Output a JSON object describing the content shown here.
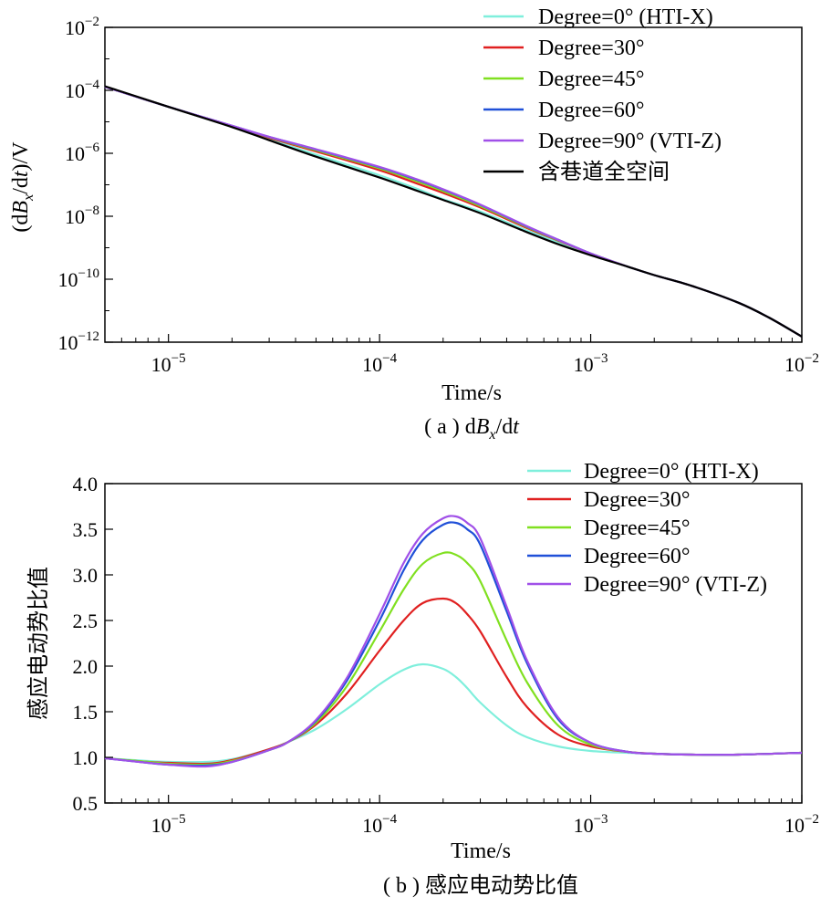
{
  "colors": {
    "deg0": "#7fefdc",
    "deg30": "#e02020",
    "deg45": "#80e020",
    "deg60": "#2050d8",
    "deg90": "#a050e8",
    "fullspace": "#000000"
  },
  "chart_data": [
    {
      "type": "line",
      "caption": "( a ) dBx/dt",
      "xlabel": "Time/s",
      "ylabel": "(dBx/dt)/V",
      "xscale": "log",
      "yscale": "log",
      "xlim": [
        5e-06,
        0.01
      ],
      "ylim": [
        1e-12,
        0.01
      ],
      "xticks": [
        {
          "base": "10",
          "exp": "−5",
          "value": 1e-05
        },
        {
          "base": "10",
          "exp": "−4",
          "value": 0.0001
        },
        {
          "base": "10",
          "exp": "−3",
          "value": 0.001
        },
        {
          "base": "10",
          "exp": "−2",
          "value": 0.01
        }
      ],
      "yticks": [
        {
          "base": "10",
          "exp": "−2",
          "value": 0.01
        },
        {
          "base": "10",
          "exp": "−4",
          "value": 0.0001
        },
        {
          "base": "10",
          "exp": "−6",
          "value": 1e-06
        },
        {
          "base": "10",
          "exp": "−8",
          "value": 1e-08
        },
        {
          "base": "10",
          "exp": "−10",
          "value": 1e-10
        },
        {
          "base": "10",
          "exp": "−12",
          "value": 1e-12
        }
      ],
      "legend_position": "top-right",
      "x": [
        5e-06,
        1e-05,
        2e-05,
        3e-05,
        5e-05,
        0.0001,
        0.00015,
        0.0002,
        0.0003,
        0.0005,
        0.0007,
        0.001,
        0.0015,
        0.002,
        0.003,
        0.005,
        0.007,
        0.01
      ],
      "series": [
        {
          "name": "Degree=0° (HTI-X)",
          "color_key": "deg0",
          "values": [
            0.00013,
            3e-05,
            7e-06,
            2.8e-06,
            9e-07,
            2e-07,
            7.5e-08,
            3.5e-08,
            1.4e-08,
            3.5e-09,
            1.5e-09,
            6.2e-10,
            2.5e-10,
            1.35e-10,
            6.2e-11,
            1.8e-11,
            6e-12,
            1.5e-12
          ]
        },
        {
          "name": "Degree=30°",
          "color_key": "deg30",
          "values": [
            0.00013,
            3e-05,
            7.3e-06,
            3.1e-06,
            1.15e-06,
            2.9e-07,
            1.1e-07,
            5.5e-08,
            1.9e-08,
            4.2e-09,
            1.7e-09,
            6.5e-10,
            2.5e-10,
            1.35e-10,
            6.2e-11,
            1.8e-11,
            6e-12,
            1.5e-12
          ]
        },
        {
          "name": "Degree=45°",
          "color_key": "deg45",
          "values": [
            0.00013,
            3e-05,
            7.4e-06,
            3.25e-06,
            1.25e-06,
            3.3e-07,
            1.3e-07,
            6.3e-08,
            2.1e-08,
            4.5e-09,
            1.75e-09,
            6.6e-10,
            2.5e-10,
            1.35e-10,
            6.2e-11,
            1.8e-11,
            6e-12,
            1.5e-12
          ]
        },
        {
          "name": "Degree=60°",
          "color_key": "deg60",
          "values": [
            0.00013,
            3e-05,
            7.5e-06,
            3.3e-06,
            1.32e-06,
            3.6e-07,
            1.45e-07,
            7e-08,
            2.3e-08,
            4.7e-09,
            1.8e-09,
            6.6e-10,
            2.5e-10,
            1.35e-10,
            6.2e-11,
            1.8e-11,
            6e-12,
            1.5e-12
          ]
        },
        {
          "name": "Degree=90° (VTI-Z)",
          "color_key": "deg90",
          "values": [
            0.00013,
            3e-05,
            7.5e-06,
            3.35e-06,
            1.35e-06,
            3.7e-07,
            1.5e-07,
            7.2e-08,
            2.35e-08,
            4.8e-09,
            1.8e-09,
            6.6e-10,
            2.5e-10,
            1.35e-10,
            6.2e-11,
            1.8e-11,
            6e-12,
            1.5e-12
          ]
        },
        {
          "name": "含巷道全空间",
          "color_key": "fullspace",
          "values": [
            0.000135,
            3e-05,
            6.8e-06,
            2.6e-06,
            7.8e-07,
            1.7e-07,
            6.5e-08,
            3.3e-08,
            1.25e-08,
            3.1e-09,
            1.3e-09,
            5.8e-10,
            2.5e-10,
            1.35e-10,
            6.2e-11,
            1.8e-11,
            6e-12,
            1.5e-12
          ]
        }
      ]
    },
    {
      "type": "line",
      "caption": "( b ) 感应电动势比值",
      "xlabel": "Time/s",
      "ylabel": "感应电动势比值",
      "xscale": "log",
      "yscale": "linear",
      "xlim": [
        5e-06,
        0.01
      ],
      "ylim": [
        0.5,
        4.0
      ],
      "xticks": [
        {
          "base": "10",
          "exp": "−5",
          "value": 1e-05
        },
        {
          "base": "10",
          "exp": "−4",
          "value": 0.0001
        },
        {
          "base": "10",
          "exp": "−3",
          "value": 0.001
        },
        {
          "base": "10",
          "exp": "−2",
          "value": 0.01
        }
      ],
      "yticks": [
        "4.0",
        "3.5",
        "3.0",
        "2.5",
        "2.0",
        "1.5",
        "1.0",
        "0.5"
      ],
      "legend_position": "top-right",
      "x": [
        5e-06,
        8e-06,
        1e-05,
        1.5e-05,
        2e-05,
        3e-05,
        3.7e-05,
        5e-05,
        7e-05,
        0.0001,
        0.00013,
        0.00016,
        0.0002,
        0.00023,
        0.00026,
        0.0003,
        0.0004,
        0.0005,
        0.0007,
        0.001,
        0.0015,
        0.002,
        0.003,
        0.005,
        0.01
      ],
      "series": [
        {
          "name": "Degree=0° (HTI-X)",
          "color_key": "deg0",
          "values": [
            0.99,
            0.96,
            0.95,
            0.95,
            0.98,
            1.09,
            1.17,
            1.31,
            1.53,
            1.8,
            1.96,
            2.02,
            1.97,
            1.88,
            1.76,
            1.6,
            1.35,
            1.22,
            1.12,
            1.07,
            1.05,
            1.04,
            1.03,
            1.03,
            1.05
          ]
        },
        {
          "name": "Degree=30°",
          "color_key": "deg30",
          "values": [
            0.99,
            0.95,
            0.94,
            0.93,
            0.97,
            1.09,
            1.17,
            1.36,
            1.7,
            2.17,
            2.5,
            2.69,
            2.74,
            2.69,
            2.57,
            2.38,
            1.88,
            1.55,
            1.25,
            1.12,
            1.06,
            1.04,
            1.03,
            1.03,
            1.05
          ]
        },
        {
          "name": "Degree=45°",
          "color_key": "deg45",
          "values": [
            0.99,
            0.95,
            0.93,
            0.92,
            0.96,
            1.08,
            1.17,
            1.38,
            1.78,
            2.38,
            2.84,
            3.12,
            3.24,
            3.22,
            3.13,
            2.93,
            2.28,
            1.82,
            1.35,
            1.14,
            1.06,
            1.04,
            1.03,
            1.03,
            1.05
          ]
        },
        {
          "name": "Degree=60°",
          "color_key": "deg60",
          "values": [
            0.99,
            0.94,
            0.92,
            0.91,
            0.95,
            1.08,
            1.17,
            1.4,
            1.84,
            2.5,
            3.05,
            3.38,
            3.55,
            3.57,
            3.5,
            3.33,
            2.6,
            2.03,
            1.42,
            1.16,
            1.06,
            1.04,
            1.03,
            1.03,
            1.05
          ]
        },
        {
          "name": "Degree=90° (VTI-Z)",
          "color_key": "deg90",
          "values": [
            0.99,
            0.94,
            0.92,
            0.9,
            0.95,
            1.08,
            1.17,
            1.41,
            1.87,
            2.57,
            3.13,
            3.45,
            3.62,
            3.64,
            3.57,
            3.4,
            2.65,
            2.06,
            1.44,
            1.16,
            1.06,
            1.04,
            1.03,
            1.03,
            1.05
          ]
        }
      ]
    }
  ]
}
